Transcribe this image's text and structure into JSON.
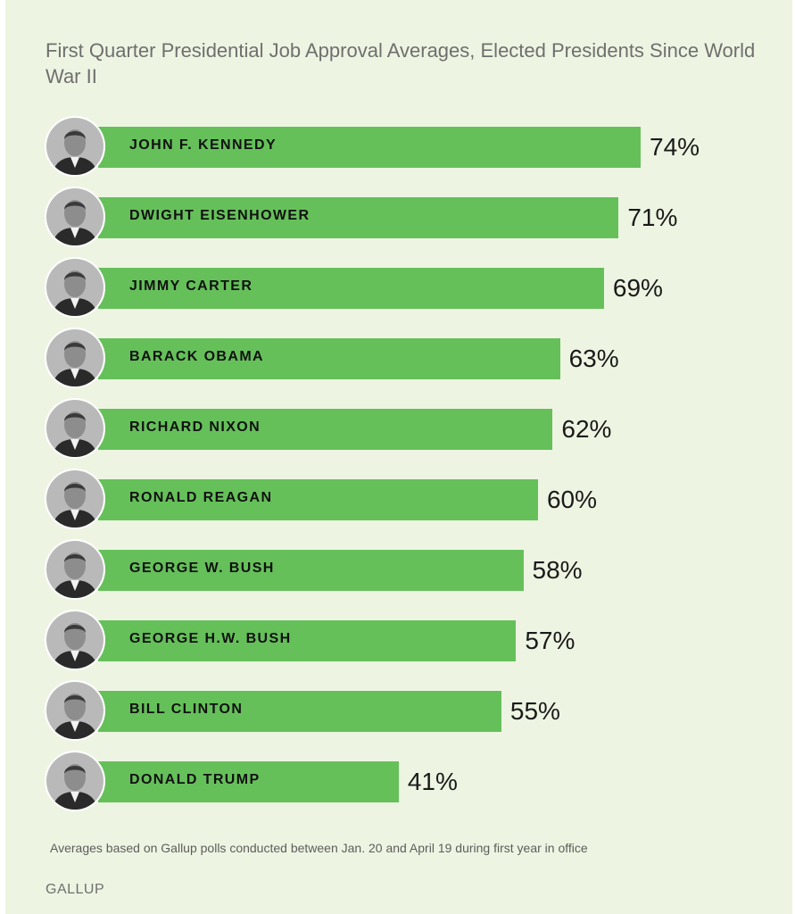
{
  "chart_data": {
    "type": "bar",
    "orientation": "horizontal",
    "title": "First Quarter Presidential Job Approval Averages, Elected Presidents Since World War II",
    "categories": [
      "JOHN F. KENNEDY",
      "DWIGHT EISENHOWER",
      "JIMMY CARTER",
      "BARACK OBAMA",
      "RICHARD NIXON",
      "RONALD REAGAN",
      "GEORGE W. BUSH",
      "GEORGE H.W. BUSH",
      "BILL CLINTON",
      "DONALD TRUMP"
    ],
    "values": [
      74,
      71,
      69,
      63,
      62,
      60,
      58,
      57,
      55,
      41
    ],
    "value_labels": [
      "74%",
      "71%",
      "69%",
      "63%",
      "62%",
      "60%",
      "58%",
      "57%",
      "55%",
      "41%"
    ],
    "unit": "%",
    "xlim": [
      0,
      74
    ],
    "bar_color": "#65c05a",
    "background_color": "#edf5e2",
    "grid": false,
    "legend": "none",
    "footnote": "Averages based on Gallup polls conducted between Jan. 20 and April 19 during first year in office",
    "source": "GALLUP"
  },
  "avatar_icon": "president-portrait-icon"
}
